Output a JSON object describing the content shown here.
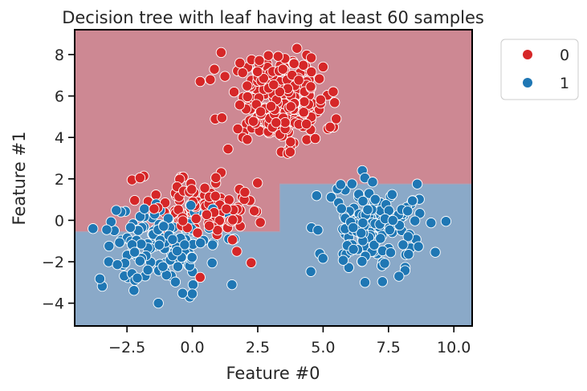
{
  "chart_data": {
    "type": "scatter",
    "title": "Decision tree with leaf having at least 60 samples",
    "xlabel": "Feature #0",
    "ylabel": "Feature #1",
    "xlim": [
      -4.5,
      10.7
    ],
    "ylim": [
      -5.1,
      9.2
    ],
    "xticks": [
      -2.5,
      0.0,
      2.5,
      5.0,
      7.5,
      10.0
    ],
    "xtick_labels": [
      "−2.5",
      "0.0",
      "2.5",
      "5.0",
      "7.5",
      "10.0"
    ],
    "yticks": [
      -4,
      -2,
      0,
      2,
      4,
      6,
      8
    ],
    "ytick_labels": [
      "−4",
      "−2",
      "0",
      "2",
      "4",
      "6",
      "8"
    ],
    "grid": false,
    "legend_position": "outside-top-right",
    "decision_boundary": {
      "regions": [
        {
          "class": "0",
          "color": "#cd8893"
        },
        {
          "class": "1",
          "color": "#8aa9c8"
        }
      ],
      "boundary_path": [
        [
          -4.5,
          -0.55
        ],
        [
          3.35,
          -0.55
        ],
        [
          3.35,
          1.75
        ],
        [
          10.7,
          1.75
        ]
      ]
    },
    "series": [
      {
        "name": "0",
        "color": "#d62728",
        "clusters": [
          {
            "n": 230,
            "cx": 3.3,
            "cy": 5.8,
            "sx": 1.0,
            "sy": 1.1,
            "xmin": 0.3,
            "xmax": 5.6,
            "ymin": 3.2,
            "ymax": 8.3
          },
          {
            "n": 100,
            "cx": 0.3,
            "cy": 0.6,
            "sx": 1.0,
            "sy": 0.8,
            "xmin": -2.6,
            "xmax": 2.6,
            "ymin": -2.8,
            "ymax": 2.3
          }
        ],
        "points": [
          [
            0.3,
            6.7
          ],
          [
            1.1,
            8.1
          ],
          [
            3.4,
            3.3
          ],
          [
            4.0,
            8.3
          ],
          [
            5.5,
            4.9
          ],
          [
            5.4,
            4.5
          ],
          [
            4.7,
            3.95
          ],
          [
            2.1,
            3.9
          ],
          [
            5.0,
            7.4
          ],
          [
            -2.0,
            2.05
          ],
          [
            1.1,
            2.3
          ],
          [
            2.25,
            -2.05
          ],
          [
            1.7,
            -1.5
          ],
          [
            0.3,
            -2.75
          ],
          [
            2.2,
            0.95
          ],
          [
            2.6,
            -0.1
          ]
        ]
      },
      {
        "name": "1",
        "color": "#1f77b4",
        "clusters": [
          {
            "n": 150,
            "cx": -1.1,
            "cy": -1.1,
            "sx": 1.1,
            "sy": 1.0,
            "xmin": -3.8,
            "xmax": 2.0,
            "ymin": -4.1,
            "ymax": 0.9
          },
          {
            "n": 150,
            "cx": 6.8,
            "cy": -0.3,
            "sx": 1.0,
            "sy": 1.1,
            "xmin": 4.5,
            "xmax": 9.8,
            "ymin": -3.1,
            "ymax": 2.5
          }
        ],
        "points": [
          [
            -1.3,
            -4.0
          ],
          [
            0.0,
            -3.55
          ],
          [
            -0.1,
            -3.7
          ],
          [
            -3.2,
            -2.0
          ],
          [
            -2.2,
            -2.9
          ],
          [
            6.6,
            -3.0
          ],
          [
            7.9,
            -2.7
          ],
          [
            9.7,
            -0.05
          ],
          [
            6.5,
            2.4
          ],
          [
            8.6,
            1.75
          ],
          [
            -3.8,
            -0.4
          ],
          [
            1.6,
            -0.9
          ]
        ]
      }
    ],
    "legend": {
      "entries": [
        {
          "label": "0",
          "color": "#d62728"
        },
        {
          "label": "1",
          "color": "#1f77b4"
        }
      ]
    }
  }
}
